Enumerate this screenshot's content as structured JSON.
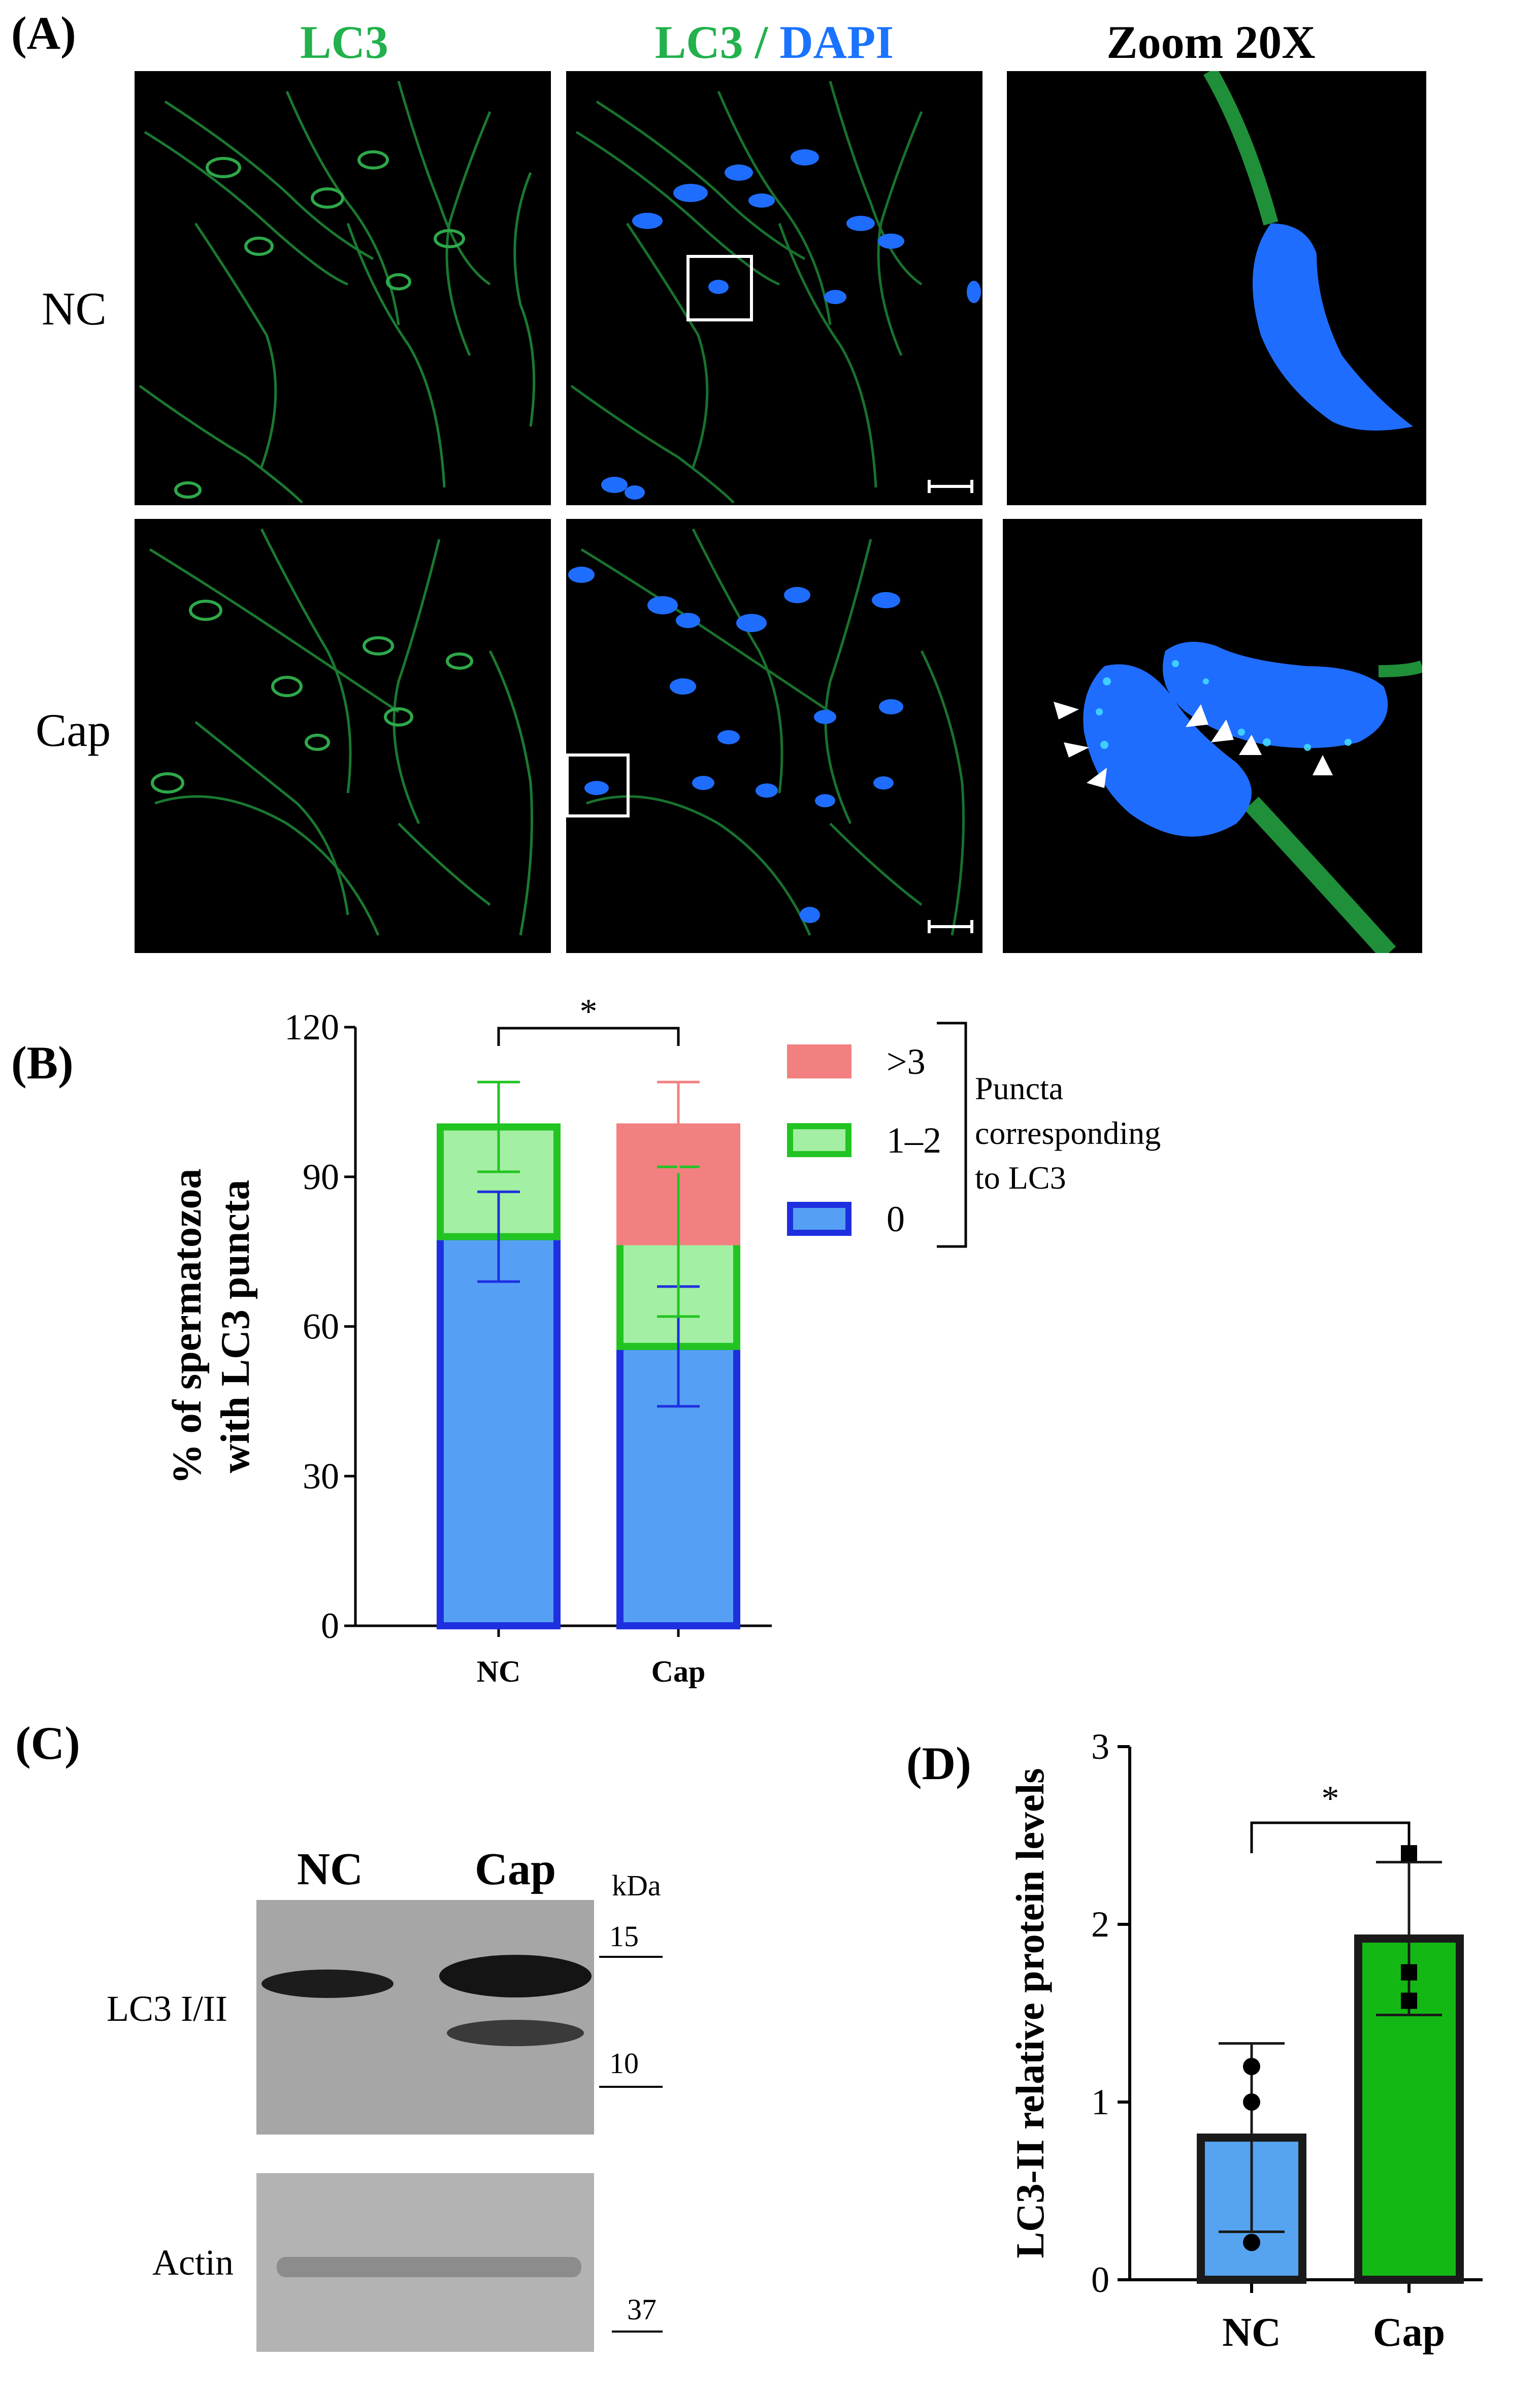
{
  "colors": {
    "lc3": "#22b14c",
    "dapi": "#1a73ff",
    "blue_bar": "#55a0f5",
    "blue_edge": "#1e2fe0",
    "green_bar": "#a3efa3",
    "green_edge": "#22c422",
    "red_bar": "#f28080",
    "red_edge": "#f28080",
    "d_blue": "#56a3f0",
    "d_green": "#14b814"
  },
  "panels": {
    "a": "(A)",
    "b": "(B)",
    "c": "(C)",
    "d": "(D)"
  },
  "micrograph_columns": {
    "lc3": "LC3",
    "merge_lc3": "LC3",
    "merge_sep": " / ",
    "merge_dapi": "DAPI",
    "zoom": "Zoom 20X"
  },
  "micrograph_rows": [
    "NC",
    "Cap"
  ],
  "blot": {
    "lanes": [
      "NC",
      "Cap"
    ],
    "unit": "kDa",
    "target_label": "LC3 I/II",
    "loading_label": "Actin",
    "markers": [
      "15",
      "10",
      "37"
    ]
  },
  "chart_data": [
    {
      "type": "bar",
      "stacked": true,
      "categories": [
        "NC",
        "Cap"
      ],
      "ylabel": "% of spermatozoa with LC3 puncta",
      "ylabel_lines": [
        "% of spermatozoa",
        "with LC3 puncta"
      ],
      "ylim": [
        0,
        120
      ],
      "yticks": [
        "0",
        "30",
        "60",
        "90",
        "120"
      ],
      "series": [
        {
          "name": "0",
          "values": [
            78,
            56
          ],
          "error": [
            9,
            12
          ]
        },
        {
          "name": "1–2",
          "values": [
            22,
            21
          ],
          "error": [
            9,
            15
          ]
        },
        {
          "name": ">3",
          "values": [
            0,
            23
          ],
          "error": [
            0,
            9
          ]
        }
      ],
      "legend_position": "right",
      "legend_title": "Puncta corresponding to LC3",
      "legend_title_lines": [
        "Puncta",
        "corresponding",
        "to LC3"
      ],
      "significance": "*"
    },
    {
      "type": "bar",
      "categories": [
        "NC",
        "Cap"
      ],
      "values": [
        0.8,
        1.92
      ],
      "error": [
        0.53,
        0.43
      ],
      "points": [
        [
          1.2,
          1.0,
          0.21
        ],
        [
          2.4,
          1.73,
          1.57
        ]
      ],
      "ylabel": "LC3-II relative protein levels",
      "ylim": [
        0,
        3
      ],
      "yticks": [
        "0",
        "1",
        "2",
        "3"
      ],
      "significance": "*"
    }
  ]
}
